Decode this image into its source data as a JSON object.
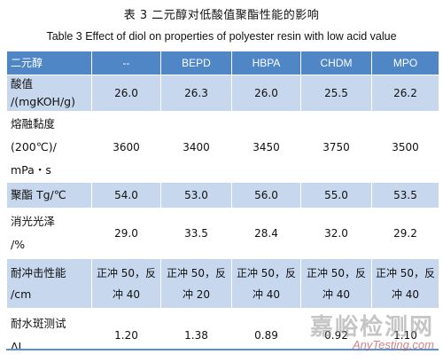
{
  "title_cn": "表 3  二元醇对低酸值聚酯性能的影响",
  "title_en": "Table 3 Effect of diol on properties of polyester resin with low acid value",
  "header": [
    "二元醇",
    "--",
    "BEPD",
    "HBPA",
    "CHDM",
    "MPO"
  ],
  "rows": [
    {
      "label_lines": [
        "酸值",
        "/(mgKOH/g)"
      ],
      "values": [
        "26.0",
        "26.3",
        "26.0",
        "25.5",
        "26.2"
      ]
    },
    {
      "label_lines": [
        "熔融黏度",
        "(200℃)/",
        "mPa・s"
      ],
      "values": [
        "3600",
        "3400",
        "3450",
        "3750",
        "3500"
      ]
    },
    {
      "label_lines": [
        "聚酯 Tg/℃"
      ],
      "values": [
        "54.0",
        "53.0",
        "56.0",
        "55.0",
        "53.5"
      ]
    },
    {
      "label_lines": [
        "消光光泽",
        "/%"
      ],
      "values": [
        "29.0",
        "33.5",
        "28.4",
        "32.0",
        "29.2"
      ]
    },
    {
      "label_lines": [
        "耐冲击性能",
        "/cm"
      ],
      "values": [
        [
          "正冲 50，反",
          "冲 40"
        ],
        [
          "正冲 50，反",
          "冲 20"
        ],
        [
          "正冲 50，反",
          "冲 40"
        ],
        [
          "正冲 50，反",
          "冲 40"
        ],
        [
          "正冲 50，反",
          "冲 40"
        ]
      ]
    },
    {
      "label_lines": [
        "耐水斑测试",
        "ΔL"
      ],
      "values": [
        "1.20",
        "1.38",
        "0.89",
        "0.92",
        "1.10"
      ]
    }
  ],
  "watermark": {
    "cn": "嘉峪检测网",
    "en": "AnyTesting.com"
  }
}
